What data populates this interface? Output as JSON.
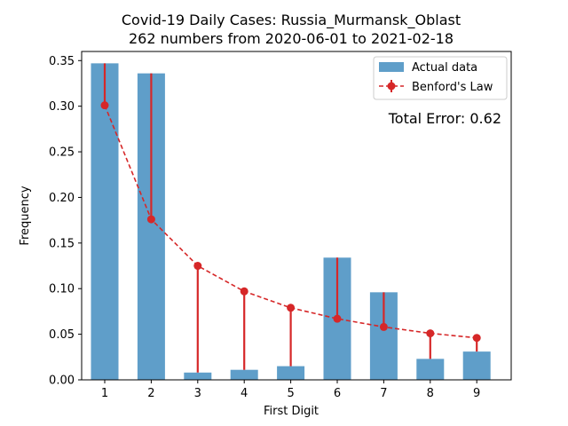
{
  "chart_data": {
    "type": "bar",
    "title_line1": "Covid-19 Daily Cases: Russia_Murmansk_Oblast",
    "title_line2": "262 numbers from 2020-06-01 to 2021-02-18",
    "xlabel": "First Digit",
    "ylabel": "Frequency",
    "categories": [
      "1",
      "2",
      "3",
      "4",
      "5",
      "6",
      "7",
      "8",
      "9"
    ],
    "ylim": [
      0,
      0.36
    ],
    "yticks": [
      "0.00",
      "0.05",
      "0.10",
      "0.15",
      "0.20",
      "0.25",
      "0.30",
      "0.35"
    ],
    "grid": false,
    "legend_position": "top-right",
    "series": [
      {
        "name": "Actual data",
        "kind": "bar",
        "color": "#5f9ec9",
        "values": [
          0.347,
          0.336,
          0.008,
          0.011,
          0.015,
          0.134,
          0.096,
          0.023,
          0.031
        ]
      },
      {
        "name": "Benford's Law",
        "kind": "line",
        "color": "#d62728",
        "values": [
          0.301,
          0.176,
          0.125,
          0.097,
          0.079,
          0.067,
          0.058,
          0.051,
          0.046
        ]
      }
    ],
    "annotation": "Total Error: 0.62",
    "annotation_color": "#d62728"
  }
}
